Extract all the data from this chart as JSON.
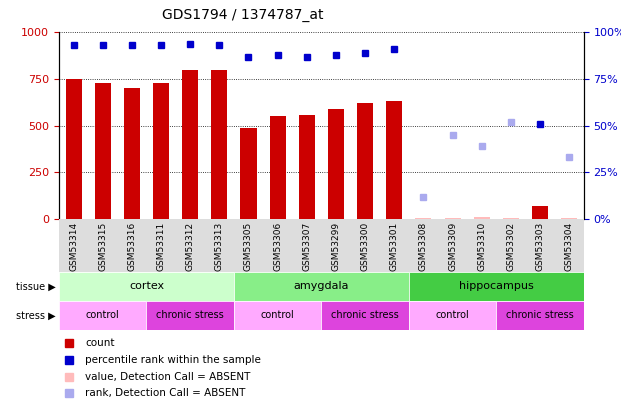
{
  "title": "GDS1794 / 1374787_at",
  "samples": [
    "GSM53314",
    "GSM53315",
    "GSM53316",
    "GSM53311",
    "GSM53312",
    "GSM53313",
    "GSM53305",
    "GSM53306",
    "GSM53307",
    "GSM53299",
    "GSM53300",
    "GSM53301",
    "GSM53308",
    "GSM53309",
    "GSM53310",
    "GSM53302",
    "GSM53303",
    "GSM53304"
  ],
  "bar_values": [
    750,
    730,
    700,
    730,
    800,
    800,
    490,
    550,
    560,
    590,
    620,
    630,
    null,
    null,
    null,
    null,
    70,
    null
  ],
  "bar_color": "#cc0000",
  "absent_bar_values": [
    null,
    null,
    null,
    null,
    null,
    null,
    null,
    null,
    null,
    null,
    null,
    null,
    8,
    7,
    10,
    8,
    null,
    8
  ],
  "absent_bar_color": "#ffbbbb",
  "pct_rank_values": [
    93,
    93,
    93,
    93,
    94,
    93,
    87,
    88,
    87,
    88,
    89,
    91,
    null,
    null,
    null,
    null,
    51,
    null
  ],
  "pct_rank_color": "#0000cc",
  "absent_rank_values": [
    null,
    null,
    null,
    null,
    null,
    null,
    null,
    null,
    null,
    null,
    null,
    null,
    12,
    45,
    39,
    52,
    null,
    33
  ],
  "absent_rank_color": "#aaaaee",
  "ylim_left": [
    0,
    1000
  ],
  "ylim_right": [
    0,
    100
  ],
  "yticks_left": [
    0,
    250,
    500,
    750,
    1000
  ],
  "ytick_labels_left": [
    "0",
    "250",
    "500",
    "750",
    "1000"
  ],
  "yticks_right": [
    0,
    25,
    50,
    75,
    100
  ],
  "ytick_labels_right": [
    "0%",
    "25%",
    "50%",
    "75%",
    "100%"
  ],
  "tissue_groups": [
    {
      "label": "cortex",
      "start": 0,
      "end": 6,
      "color": "#ccffcc"
    },
    {
      "label": "amygdala",
      "start": 6,
      "end": 12,
      "color": "#88ee88"
    },
    {
      "label": "hippocampus",
      "start": 12,
      "end": 18,
      "color": "#44cc44"
    }
  ],
  "stress_groups": [
    {
      "label": "control",
      "start": 0,
      "end": 3,
      "color": "#ffaaff"
    },
    {
      "label": "chronic stress",
      "start": 3,
      "end": 6,
      "color": "#dd44dd"
    },
    {
      "label": "control",
      "start": 6,
      "end": 9,
      "color": "#ffaaff"
    },
    {
      "label": "chronic stress",
      "start": 9,
      "end": 12,
      "color": "#dd44dd"
    },
    {
      "label": "control",
      "start": 12,
      "end": 15,
      "color": "#ffaaff"
    },
    {
      "label": "chronic stress",
      "start": 15,
      "end": 18,
      "color": "#dd44dd"
    }
  ],
  "legend_items": [
    {
      "label": "count",
      "color": "#cc0000"
    },
    {
      "label": "percentile rank within the sample",
      "color": "#0000cc"
    },
    {
      "label": "value, Detection Call = ABSENT",
      "color": "#ffbbbb"
    },
    {
      "label": "rank, Detection Call = ABSENT",
      "color": "#aaaaee"
    }
  ],
  "bg_color": "#ffffff",
  "xticklabel_bg": "#dddddd",
  "left_label_color": "#000000",
  "title_fontsize": 10,
  "bar_width": 0.55
}
